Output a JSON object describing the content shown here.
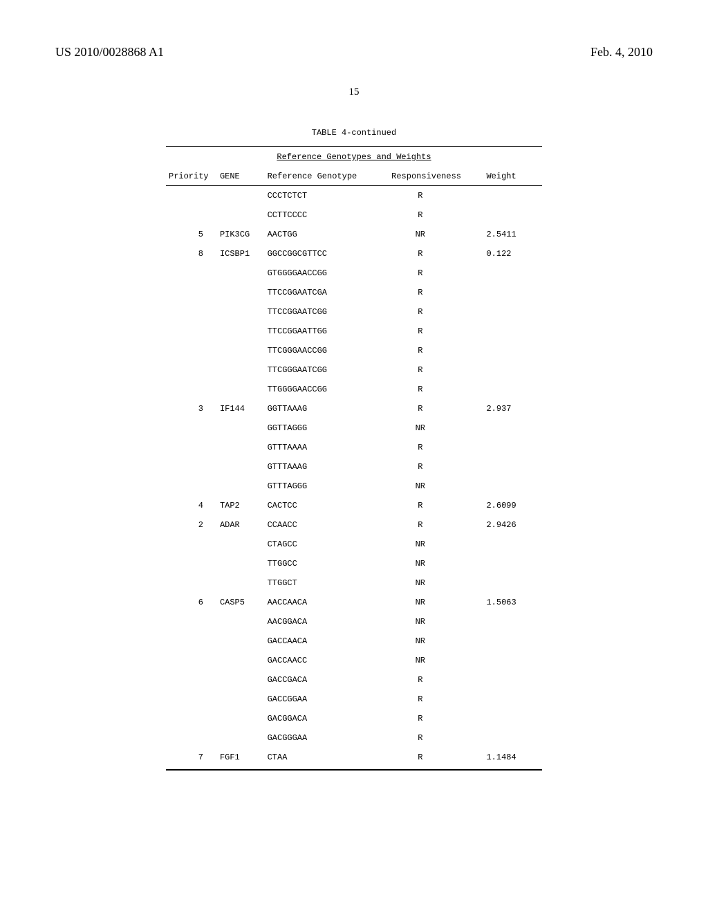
{
  "header": {
    "left": "US 2010/0028868 A1",
    "right": "Feb. 4, 2010"
  },
  "page_number": "15",
  "table": {
    "title": "TABLE 4-continued",
    "subtitle": "Reference Genotypes and Weights",
    "columns": {
      "priority": "Priority",
      "gene": "GENE",
      "genotype": "Reference Genotype",
      "responsiveness": "Responsiveness",
      "weight": "Weight"
    },
    "rows": [
      {
        "priority": "",
        "gene": "",
        "genotype": "CCCTCTCT",
        "responsiveness": "R",
        "weight": ""
      },
      {
        "priority": "",
        "gene": "",
        "genotype": "CCTTCCCC",
        "responsiveness": "R",
        "weight": ""
      },
      {
        "priority": "5",
        "gene": "PIK3CG",
        "genotype": "AACTGG",
        "responsiveness": "NR",
        "weight": "2.5411"
      },
      {
        "priority": "8",
        "gene": "ICSBP1",
        "genotype": "GGCCGGCGTTCC",
        "responsiveness": "R",
        "weight": "0.122"
      },
      {
        "priority": "",
        "gene": "",
        "genotype": "GTGGGGAACCGG",
        "responsiveness": "R",
        "weight": ""
      },
      {
        "priority": "",
        "gene": "",
        "genotype": "TTCCGGAATCGA",
        "responsiveness": "R",
        "weight": ""
      },
      {
        "priority": "",
        "gene": "",
        "genotype": "TTCCGGAATCGG",
        "responsiveness": "R",
        "weight": ""
      },
      {
        "priority": "",
        "gene": "",
        "genotype": "TTCCGGAATTGG",
        "responsiveness": "R",
        "weight": ""
      },
      {
        "priority": "",
        "gene": "",
        "genotype": "TTCGGGAACCGG",
        "responsiveness": "R",
        "weight": ""
      },
      {
        "priority": "",
        "gene": "",
        "genotype": "TTCGGGAATCGG",
        "responsiveness": "R",
        "weight": ""
      },
      {
        "priority": "",
        "gene": "",
        "genotype": "TTGGGGAACCGG",
        "responsiveness": "R",
        "weight": ""
      },
      {
        "priority": "3",
        "gene": "IF144",
        "genotype": "GGTTAAAG",
        "responsiveness": "R",
        "weight": "2.937"
      },
      {
        "priority": "",
        "gene": "",
        "genotype": "GGTTAGGG",
        "responsiveness": "NR",
        "weight": ""
      },
      {
        "priority": "",
        "gene": "",
        "genotype": "GTTTAAAA",
        "responsiveness": "R",
        "weight": ""
      },
      {
        "priority": "",
        "gene": "",
        "genotype": "GTTTAAAG",
        "responsiveness": "R",
        "weight": ""
      },
      {
        "priority": "",
        "gene": "",
        "genotype": "GTTTAGGG",
        "responsiveness": "NR",
        "weight": ""
      },
      {
        "priority": "4",
        "gene": "TAP2",
        "genotype": "CACTCC",
        "responsiveness": "R",
        "weight": "2.6099"
      },
      {
        "priority": "2",
        "gene": "ADAR",
        "genotype": "CCAACC",
        "responsiveness": "R",
        "weight": "2.9426"
      },
      {
        "priority": "",
        "gene": "",
        "genotype": "CTAGCC",
        "responsiveness": "NR",
        "weight": ""
      },
      {
        "priority": "",
        "gene": "",
        "genotype": "TTGGCC",
        "responsiveness": "NR",
        "weight": ""
      },
      {
        "priority": "",
        "gene": "",
        "genotype": "TTGGCT",
        "responsiveness": "NR",
        "weight": ""
      },
      {
        "priority": "6",
        "gene": "CASP5",
        "genotype": "AACCAACA",
        "responsiveness": "NR",
        "weight": "1.5063"
      },
      {
        "priority": "",
        "gene": "",
        "genotype": "AACGGACA",
        "responsiveness": "NR",
        "weight": ""
      },
      {
        "priority": "",
        "gene": "",
        "genotype": "GACCAACA",
        "responsiveness": "NR",
        "weight": ""
      },
      {
        "priority": "",
        "gene": "",
        "genotype": "GACCAACC",
        "responsiveness": "NR",
        "weight": ""
      },
      {
        "priority": "",
        "gene": "",
        "genotype": "GACCGACA",
        "responsiveness": "R",
        "weight": ""
      },
      {
        "priority": "",
        "gene": "",
        "genotype": "GACCGGAA",
        "responsiveness": "R",
        "weight": ""
      },
      {
        "priority": "",
        "gene": "",
        "genotype": "GACGGACA",
        "responsiveness": "R",
        "weight": ""
      },
      {
        "priority": "",
        "gene": "",
        "genotype": "GACGGGAA",
        "responsiveness": "R",
        "weight": ""
      },
      {
        "priority": "7",
        "gene": "FGF1",
        "genotype": "CTAA",
        "responsiveness": "R",
        "weight": "1.1484"
      }
    ]
  }
}
